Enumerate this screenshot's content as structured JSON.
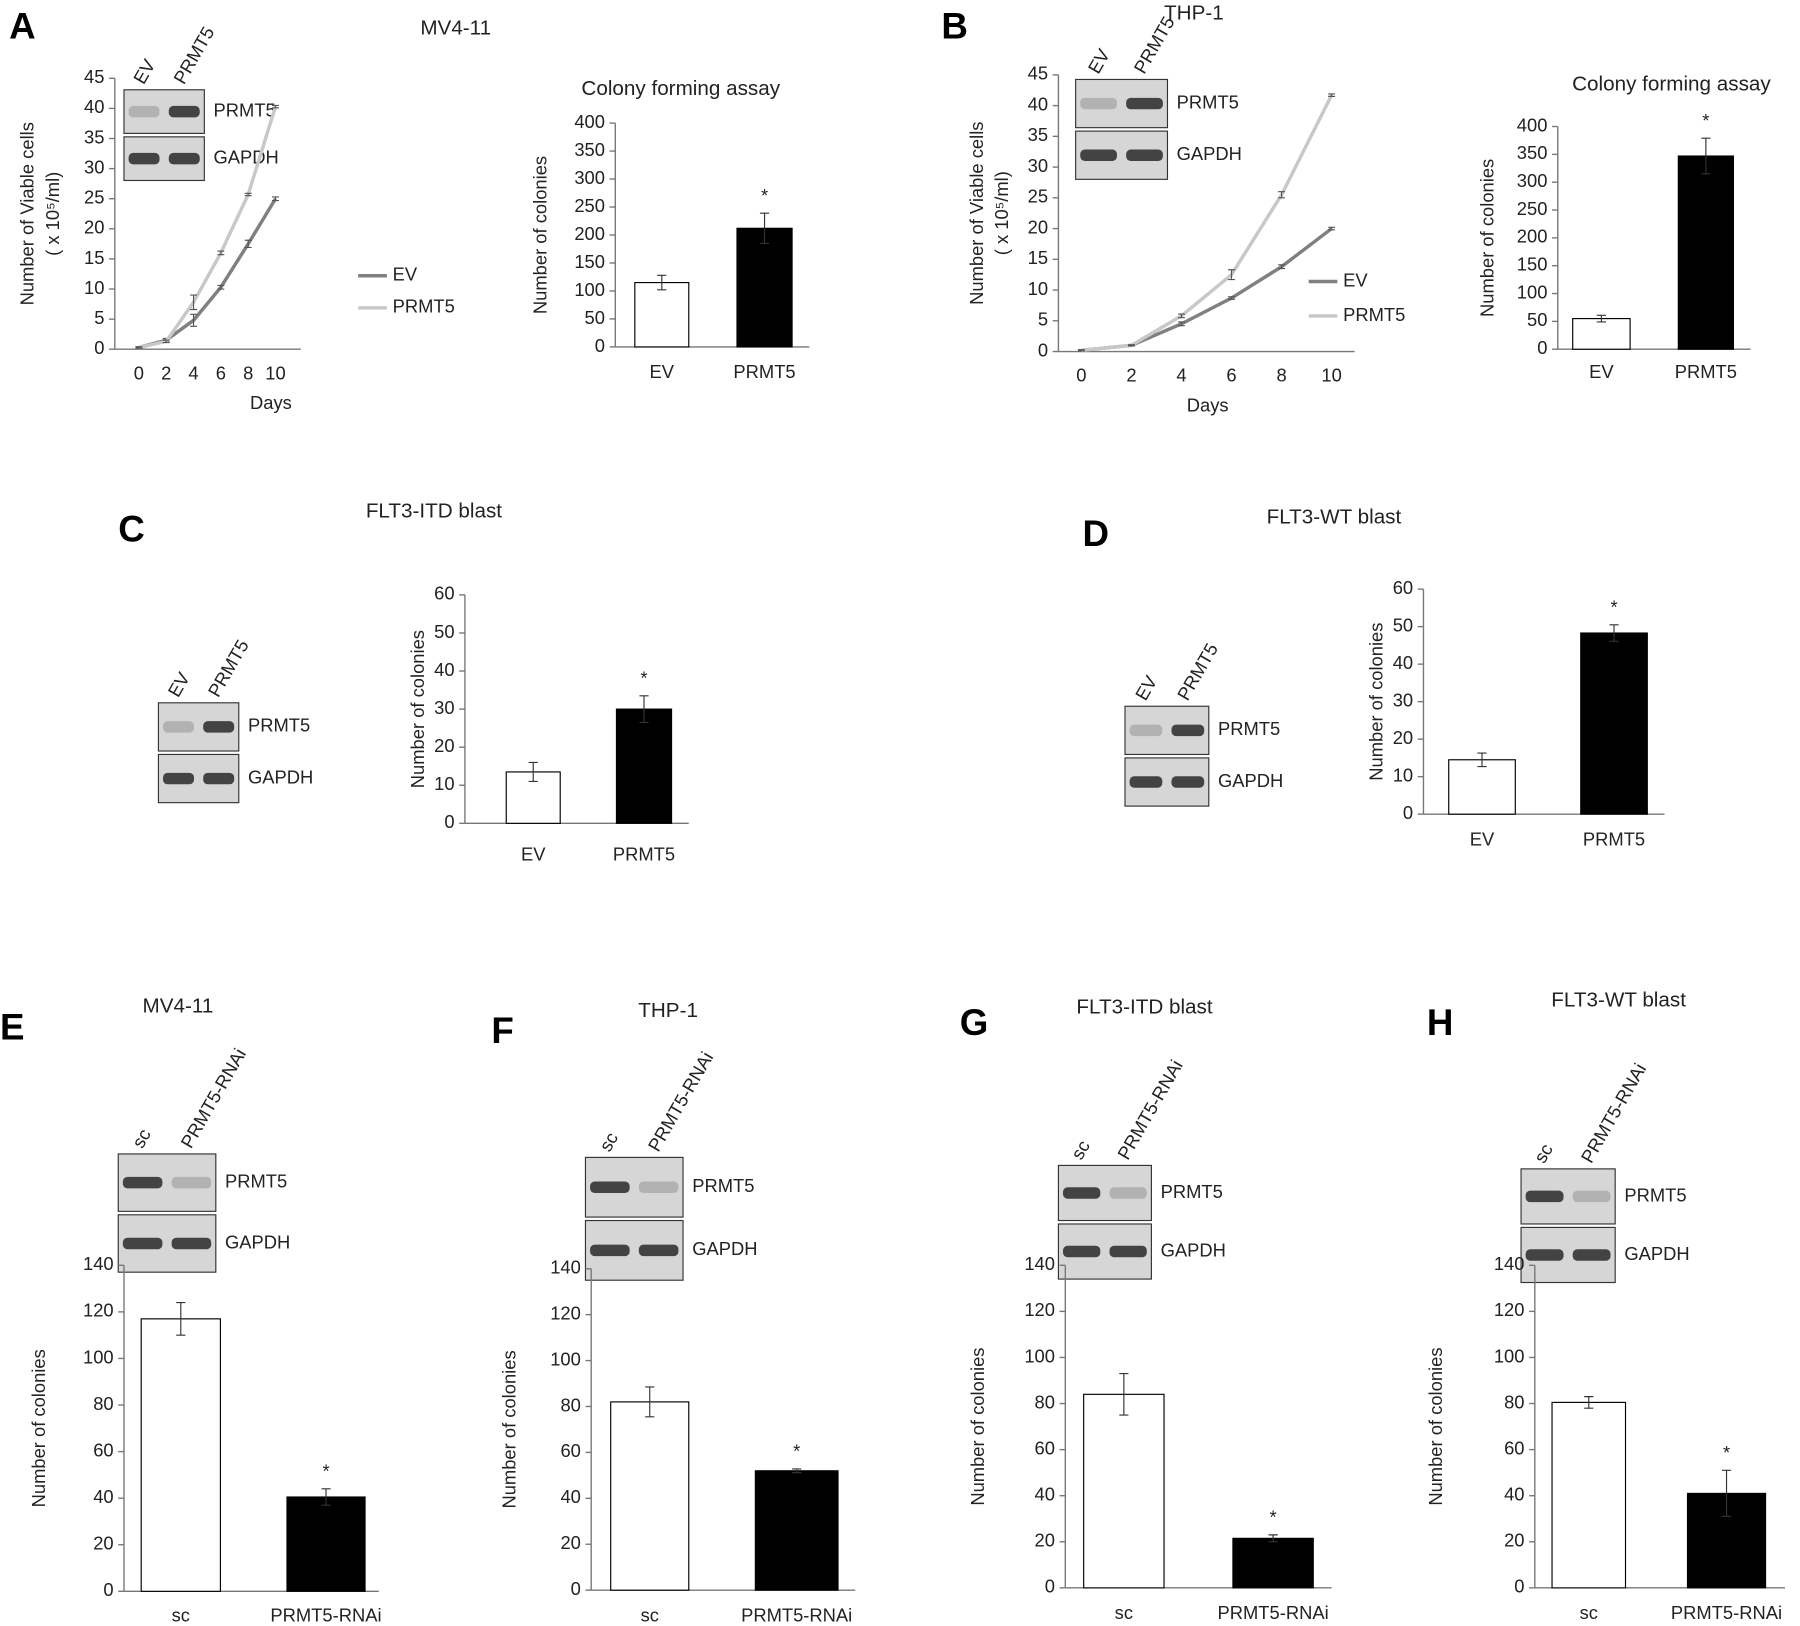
{
  "chart_data": [
    {
      "type": "line",
      "panel": "A",
      "title": "MV4-11",
      "blot": {
        "lanes": [
          "EV",
          "PRMT5"
        ],
        "proteins": [
          "PRMT5",
          "GAPDH"
        ]
      },
      "categories": [
        "0",
        "2",
        "4",
        "6",
        "8",
        "10"
      ],
      "xlabel": "Days",
      "ylabel": [
        "Number of Viable cells",
        "( x 10⁵/ml)"
      ],
      "series": [
        {
          "name": "EV",
          "color": "#808080",
          "values": [
            0.3,
            1.5,
            4.8,
            10.3,
            17.5,
            25
          ],
          "errors": [
            0.1,
            0.3,
            1,
            0.3,
            0.6,
            0.3
          ]
        },
        {
          "name": "PRMT5",
          "color": "#c8c8c8",
          "values": [
            0.3,
            1.3,
            7.8,
            16,
            25.7,
            40.3
          ],
          "errors": [
            0.1,
            0.2,
            1.2,
            0.3,
            0.2,
            0.2
          ]
        }
      ],
      "ylim": [
        0,
        45
      ],
      "yticks": [
        0,
        5,
        10,
        15,
        20,
        25,
        30,
        35,
        40,
        45
      ]
    },
    {
      "type": "bar",
      "title": "Colony forming assay",
      "categories": [
        "EV",
        "PRMT5"
      ],
      "values": [
        115,
        212
      ],
      "errors": [
        13,
        27
      ],
      "colors": [
        "#ffffff",
        "#000000"
      ],
      "ylabel": "Number of colonies",
      "annotation": "*",
      "ylim": [
        0,
        400
      ],
      "yticks": [
        0,
        50,
        100,
        150,
        200,
        250,
        300,
        350,
        400
      ]
    },
    {
      "type": "line",
      "panel": "B",
      "title": "THP-1",
      "blot": {
        "lanes": [
          "EV",
          "PRMT5"
        ],
        "proteins": [
          "PRMT5",
          "GAPDH"
        ]
      },
      "categories": [
        "0",
        "2",
        "4",
        "6",
        "8",
        "10"
      ],
      "xlabel": "Days",
      "ylabel": [
        "Number of Viable cells",
        "( x 10⁵/ml)"
      ],
      "series": [
        {
          "name": "EV",
          "color": "#808080",
          "values": [
            0.2,
            1,
            4.5,
            8.7,
            13.8,
            20
          ],
          "errors": [
            0.1,
            0.1,
            0.3,
            0.2,
            0.3,
            0.2
          ]
        },
        {
          "name": "PRMT5",
          "color": "#c8c8c8",
          "values": [
            0.2,
            1,
            5.8,
            12.5,
            25.5,
            41.7
          ],
          "errors": [
            0.1,
            0.1,
            0.3,
            0.8,
            0.5,
            0.2
          ]
        }
      ],
      "ylim": [
        0,
        45
      ],
      "yticks": [
        0,
        5,
        10,
        15,
        20,
        25,
        30,
        35,
        40,
        45
      ]
    },
    {
      "type": "bar",
      "title": "Colony forming assay",
      "categories": [
        "EV",
        "PRMT5"
      ],
      "values": [
        55,
        347
      ],
      "errors": [
        6,
        32
      ],
      "colors": [
        "#ffffff",
        "#000000"
      ],
      "ylabel": "Number of colonies",
      "annotation": "*",
      "ylim": [
        0,
        400
      ],
      "yticks": [
        0,
        50,
        100,
        150,
        200,
        250,
        300,
        350,
        400
      ]
    },
    {
      "type": "bar",
      "panel": "C",
      "title": "FLT3-ITD blast",
      "blot": {
        "lanes": [
          "EV",
          "PRMT5"
        ],
        "proteins": [
          "PRMT5",
          "GAPDH"
        ]
      },
      "categories": [
        "EV",
        "PRMT5"
      ],
      "values": [
        13.5,
        30
      ],
      "errors": [
        2.5,
        3.5
      ],
      "colors": [
        "#ffffff",
        "#000000"
      ],
      "ylabel": "Number of colonies",
      "annotation": "*",
      "ylim": [
        0,
        60
      ],
      "yticks": [
        0,
        10,
        20,
        30,
        40,
        50,
        60
      ]
    },
    {
      "type": "bar",
      "panel": "D",
      "title": "FLT3-WT blast",
      "blot": {
        "lanes": [
          "EV",
          "PRMT5"
        ],
        "proteins": [
          "PRMT5",
          "GAPDH"
        ]
      },
      "categories": [
        "EV",
        "PRMT5"
      ],
      "values": [
        14.5,
        48.3
      ],
      "errors": [
        1.8,
        2.2
      ],
      "colors": [
        "#ffffff",
        "#000000"
      ],
      "ylabel": "Number of colonies",
      "annotation": "*",
      "ylim": [
        0,
        60
      ],
      "yticks": [
        0,
        10,
        20,
        30,
        40,
        50,
        60
      ]
    },
    {
      "type": "bar",
      "panel": "E",
      "title": "MV4-11",
      "blot": {
        "lanes": [
          "sc",
          "PRMT5-RNAi"
        ],
        "proteins": [
          "PRMT5",
          "GAPDH"
        ]
      },
      "categories": [
        "sc",
        "PRMT5-RNAi"
      ],
      "values": [
        117,
        40.5
      ],
      "errors": [
        7,
        3.5
      ],
      "colors": [
        "#ffffff",
        "#000000"
      ],
      "ylabel": "Number of colonies",
      "annotation": "*",
      "ylim": [
        0,
        140
      ],
      "yticks": [
        0,
        20,
        40,
        60,
        80,
        100,
        120,
        140
      ]
    },
    {
      "type": "bar",
      "panel": "F",
      "title": "THP-1",
      "blot": {
        "lanes": [
          "sc",
          "PRMT5-RNAi"
        ],
        "proteins": [
          "PRMT5",
          "GAPDH"
        ]
      },
      "categories": [
        "sc",
        "PRMT5-RNAi"
      ],
      "values": [
        82,
        52
      ],
      "errors": [
        6.5,
        0.8
      ],
      "colors": [
        "#ffffff",
        "#000000"
      ],
      "ylabel": "Number of colonies",
      "annotation": "*",
      "ylim": [
        0,
        140
      ],
      "yticks": [
        0,
        20,
        40,
        60,
        80,
        100,
        120,
        140
      ]
    },
    {
      "type": "bar",
      "panel": "G",
      "title": "FLT3-ITD blast",
      "blot": {
        "lanes": [
          "sc",
          "PRMT5-RNAi"
        ],
        "proteins": [
          "PRMT5",
          "GAPDH"
        ]
      },
      "categories": [
        "sc",
        "PRMT5-RNAi"
      ],
      "values": [
        84,
        21.5
      ],
      "errors": [
        9,
        1.5
      ],
      "colors": [
        "#ffffff",
        "#000000"
      ],
      "ylabel": "Number of colonies",
      "annotation": "*",
      "ylim": [
        0,
        140
      ],
      "yticks": [
        0,
        20,
        40,
        60,
        80,
        100,
        120,
        140
      ]
    },
    {
      "type": "bar",
      "panel": "H",
      "title": "FLT3-WT blast",
      "blot": {
        "lanes": [
          "sc",
          "PRMT5-RNAi"
        ],
        "proteins": [
          "PRMT5",
          "GAPDH"
        ]
      },
      "categories": [
        "sc",
        "PRMT5-RNAi"
      ],
      "values": [
        80.5,
        41
      ],
      "errors": [
        2.5,
        10
      ],
      "colors": [
        "#ffffff",
        "#000000"
      ],
      "ylabel": "Number of colonies",
      "annotation": "*",
      "ylim": [
        0,
        140
      ],
      "yticks": [
        0,
        20,
        40,
        60,
        80,
        100,
        120,
        140
      ]
    }
  ]
}
